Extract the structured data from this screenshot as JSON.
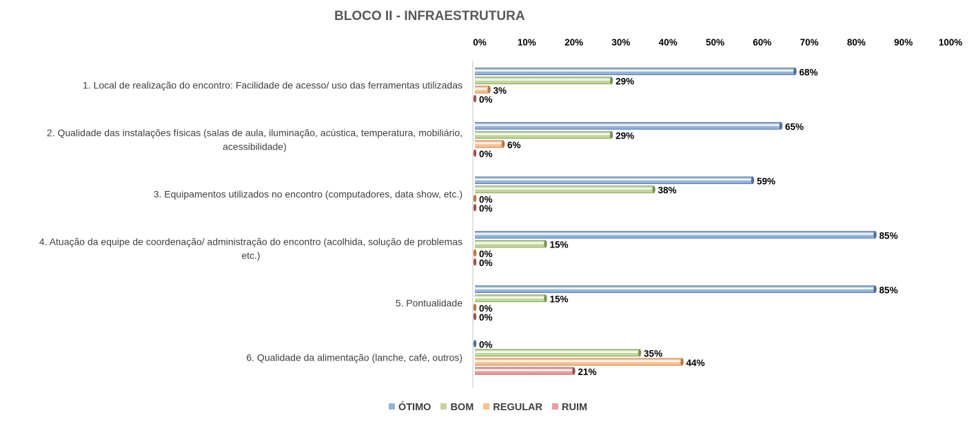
{
  "chart_data": {
    "type": "bar",
    "orientation": "horizontal",
    "title": "BLOCO II - INFRAESTRUTURA",
    "xlabel": "",
    "ylabel": "",
    "xlim": [
      0,
      100
    ],
    "x_ticks": [
      "0%",
      "10%",
      "20%",
      "30%",
      "40%",
      "50%",
      "60%",
      "70%",
      "80%",
      "90%",
      "100%"
    ],
    "x_tick_values": [
      0,
      10,
      20,
      30,
      40,
      50,
      60,
      70,
      80,
      90,
      100
    ],
    "x_axis_position": "top",
    "grid": false,
    "legend_position": "bottom",
    "categories": [
      "1. Local de realização do encontro: Facilidade de acesso/ uso das ferramentas utilizadas",
      "2. Qualidade das instalações físicas (salas de aula, iluminação, acústica, temperatura, mobiliário, acessibilidade)",
      "3. Equipamentos utilizados no encontro (computadores, data show, etc.)",
      "4. Atuação da equipe de coordenação/ administração do encontro (acolhida, solução de problemas etc.)",
      "5. Pontualidade",
      "6. Qualidade da alimentação (lanche, café, outros)"
    ],
    "category_lines": [
      [
        "1. Local de realização do encontro: Facilidade de acesso/ uso das ferramentas utilizadas"
      ],
      [
        "2. Qualidade das instalações físicas (salas de aula, iluminação, acústica, temperatura, mobiliário,",
        "acessibilidade)"
      ],
      [
        "3. Equipamentos utilizados no encontro (computadores, data show, etc.)"
      ],
      [
        "4. Atuação da equipe de coordenação/ administração do encontro (acolhida, solução de problemas",
        "etc.)"
      ],
      [
        "5. Pontualidade"
      ],
      [
        "6. Qualidade da alimentação (lanche, café, outros)"
      ]
    ],
    "series": [
      {
        "name": "ÓTIMO",
        "color": "#95b3d7",
        "edge": "#4f6f99",
        "values": [
          68,
          65,
          59,
          85,
          85,
          0
        ]
      },
      {
        "name": "BOM",
        "color": "#c3d69b",
        "edge": "#7c9550",
        "values": [
          29,
          29,
          38,
          15,
          15,
          35
        ]
      },
      {
        "name": "REGULAR",
        "color": "#fac090",
        "edge": "#b9773f",
        "values": [
          3,
          6,
          0,
          0,
          0,
          44
        ]
      },
      {
        "name": "RUIM",
        "color": "#e6a0a0",
        "edge": "#9a5353",
        "values": [
          0,
          0,
          0,
          0,
          0,
          21
        ]
      }
    ],
    "value_suffix": "%"
  }
}
